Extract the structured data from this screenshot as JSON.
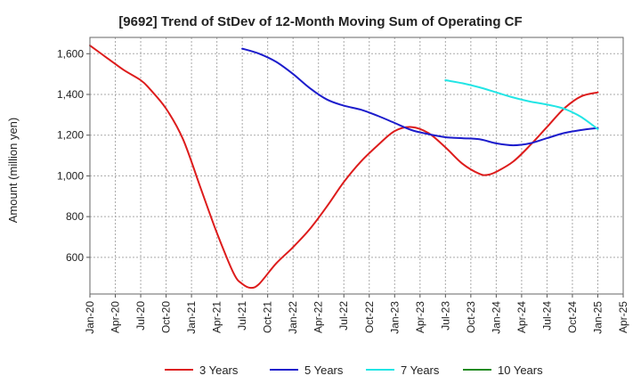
{
  "chart_data": {
    "type": "line",
    "title": "[9692]  Trend of StDev of 12-Month Moving Sum of Operating CF",
    "ylabel": "Amount (million yen)",
    "xlabel": "",
    "ylim": [
      420,
      1680
    ],
    "yticks": [
      600,
      800,
      1000,
      1200,
      1400,
      1600
    ],
    "ytick_labels": [
      "600",
      "800",
      "1,000",
      "1,200",
      "1,400",
      "1,600"
    ],
    "xlim": [
      "2020-01",
      "2025-04"
    ],
    "xticks": [
      "2020-01",
      "2020-04",
      "2020-07",
      "2020-10",
      "2021-01",
      "2021-04",
      "2021-07",
      "2021-10",
      "2022-01",
      "2022-04",
      "2022-07",
      "2022-10",
      "2023-01",
      "2023-04",
      "2023-07",
      "2023-10",
      "2024-01",
      "2024-04",
      "2024-07",
      "2024-10",
      "2025-01",
      "2025-04"
    ],
    "xtick_labels": [
      "Jan-20",
      "Apr-20",
      "Jul-20",
      "Oct-20",
      "Jan-21",
      "Apr-21",
      "Jul-21",
      "Oct-21",
      "Jan-22",
      "Apr-22",
      "Jul-22",
      "Oct-22",
      "Jan-23",
      "Apr-23",
      "Jul-23",
      "Oct-23",
      "Jan-24",
      "Apr-24",
      "Jul-24",
      "Oct-24",
      "Jan-25",
      "Apr-25"
    ],
    "grid": true,
    "legend_position": "bottom",
    "series": [
      {
        "name": "3 Years",
        "color": "#dd1c1c",
        "x": [
          "2020-01",
          "2020-03",
          "2020-05",
          "2020-07",
          "2020-08",
          "2020-10",
          "2020-12",
          "2021-02",
          "2021-04",
          "2021-06",
          "2021-07",
          "2021-08",
          "2021-09",
          "2021-11",
          "2022-01",
          "2022-03",
          "2022-05",
          "2022-07",
          "2022-09",
          "2022-11",
          "2023-01",
          "2023-03",
          "2023-05",
          "2023-07",
          "2023-09",
          "2023-11",
          "2023-12",
          "2024-01",
          "2024-03",
          "2024-05",
          "2024-07",
          "2024-09",
          "2024-11",
          "2025-01"
        ],
        "values": [
          1640,
          1580,
          1520,
          1470,
          1430,
          1330,
          1180,
          950,
          720,
          520,
          470,
          450,
          470,
          570,
          650,
          740,
          850,
          970,
          1070,
          1150,
          1220,
          1240,
          1210,
          1140,
          1060,
          1010,
          1005,
          1020,
          1070,
          1150,
          1240,
          1330,
          1390,
          1410
        ]
      },
      {
        "name": "5 Years",
        "color": "#1c1ccc",
        "x": [
          "2021-07",
          "2021-09",
          "2021-11",
          "2022-01",
          "2022-03",
          "2022-05",
          "2022-07",
          "2022-09",
          "2022-11",
          "2023-01",
          "2023-03",
          "2023-05",
          "2023-07",
          "2023-09",
          "2023-11",
          "2024-01",
          "2024-03",
          "2024-05",
          "2024-07",
          "2024-09",
          "2024-11",
          "2025-01"
        ],
        "values": [
          1625,
          1600,
          1560,
          1500,
          1430,
          1375,
          1345,
          1325,
          1295,
          1260,
          1225,
          1205,
          1190,
          1185,
          1180,
          1160,
          1150,
          1160,
          1185,
          1210,
          1225,
          1235
        ]
      },
      {
        "name": "7 Years",
        "color": "#22e5e5",
        "x": [
          "2023-07",
          "2023-09",
          "2023-11",
          "2024-01",
          "2024-03",
          "2024-05",
          "2024-07",
          "2024-09",
          "2024-11",
          "2025-01"
        ],
        "values": [
          1470,
          1455,
          1435,
          1410,
          1385,
          1365,
          1350,
          1330,
          1290,
          1230
        ]
      },
      {
        "name": "10 Years",
        "color": "#228b22",
        "x": [],
        "values": []
      }
    ]
  }
}
